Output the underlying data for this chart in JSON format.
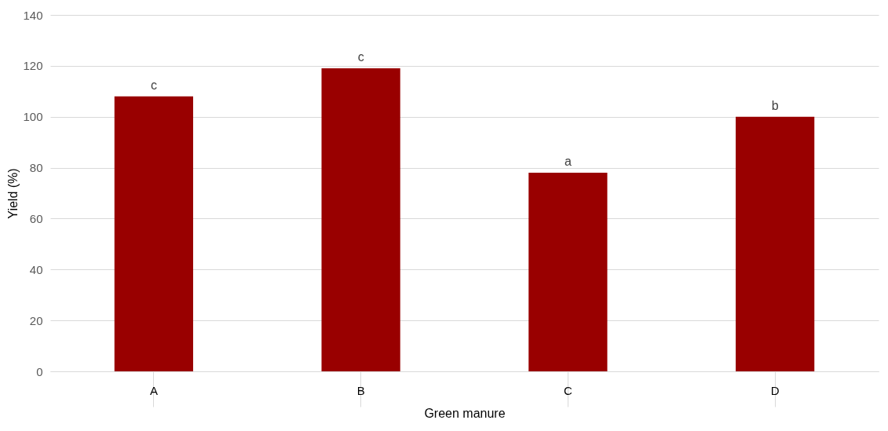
{
  "chart_data": {
    "type": "bar",
    "xlabel": "Green manure",
    "ylabel": "Yield (%)",
    "categories": [
      "A",
      "B",
      "C",
      "D"
    ],
    "values": [
      108,
      119,
      78,
      100
    ],
    "color": "#990000",
    "value_labels": [
      "c",
      "c",
      "a",
      "b"
    ],
    "ylim": [
      0,
      140
    ],
    "yticks": [
      0,
      20,
      40,
      60,
      80,
      100,
      120,
      140
    ],
    "grid": "y"
  }
}
